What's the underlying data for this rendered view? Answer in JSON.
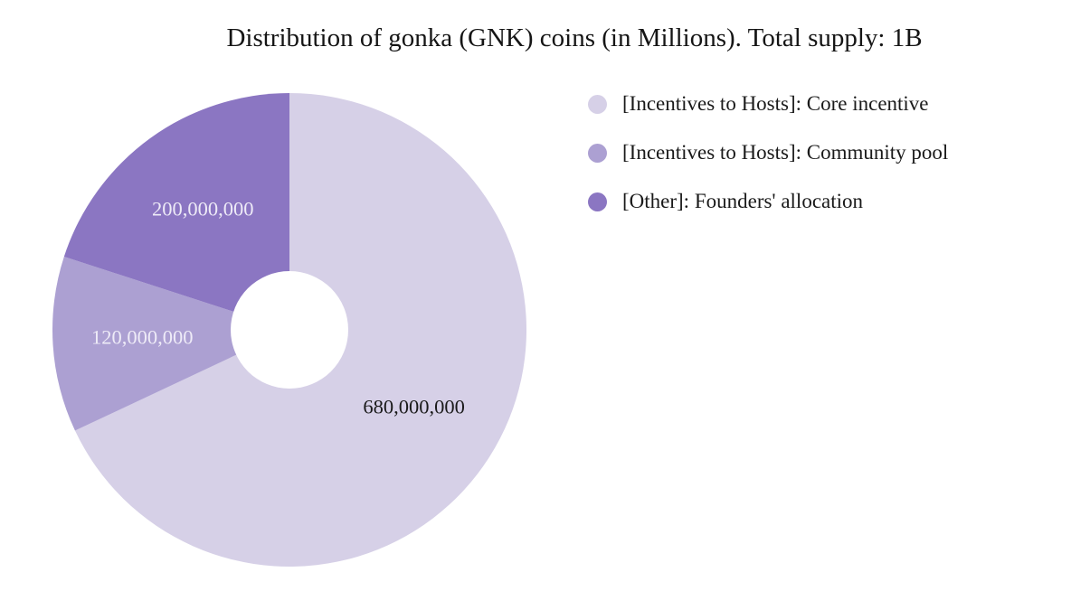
{
  "title": "Distribution of gonka (GNK) coins (in Millions). Total supply: 1B",
  "background_color": "#ffffff",
  "chart_data": {
    "type": "pie",
    "donut": true,
    "start_angle_deg": 0,
    "direction": "clockwise",
    "total": 1000000000,
    "total_label": "1B",
    "legend_position": "upper right",
    "hole_color": "#ffffff",
    "slices": [
      {
        "label": "[Incentives to Hosts]: Core incentive",
        "value": 680000000,
        "value_label": "680,000,000",
        "color": "#d6d0e7",
        "value_text_color": "#1a1a1a"
      },
      {
        "label": "[Incentives to Hosts]: Community pool",
        "value": 120000000,
        "value_label": "120,000,000",
        "color": "#aca0d2",
        "value_text_color": "#eeebf7"
      },
      {
        "label": "[Other]: Founders' allocation",
        "value": 200000000,
        "value_label": "200,000,000",
        "color": "#8b76c2",
        "value_text_color": "#eeebf7"
      }
    ]
  }
}
